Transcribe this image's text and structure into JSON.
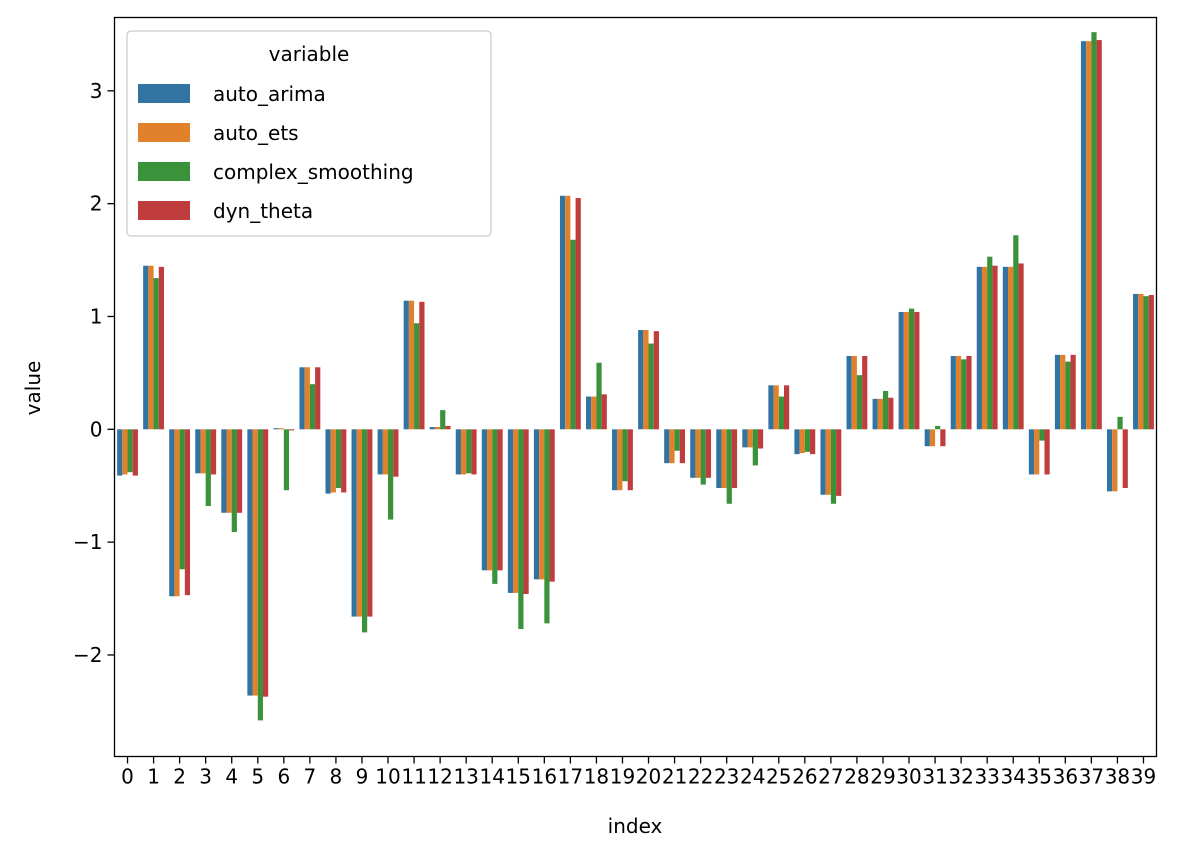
{
  "chart_data": {
    "type": "bar",
    "title": "",
    "xlabel": "index",
    "ylabel": "value",
    "ylim": [
      -2.9,
      3.65
    ],
    "yticks": [
      -2,
      -1,
      0,
      1,
      2,
      3
    ],
    "ytick_labels": [
      "−2",
      "−1",
      "0",
      "1",
      "2",
      "3"
    ],
    "legend": {
      "title": "variable",
      "placement": "upper-left"
    },
    "grid": false,
    "categories": [
      "0",
      "1",
      "2",
      "3",
      "4",
      "5",
      "6",
      "7",
      "8",
      "9",
      "10",
      "11",
      "12",
      "13",
      "14",
      "15",
      "16",
      "17",
      "18",
      "19",
      "20",
      "21",
      "22",
      "23",
      "24",
      "25",
      "26",
      "27",
      "28",
      "29",
      "30",
      "31",
      "32",
      "33",
      "34",
      "35",
      "36",
      "37",
      "38",
      "39"
    ],
    "series": [
      {
        "name": "auto_arima",
        "color": "#3274a1",
        "values": [
          -0.41,
          1.45,
          -1.48,
          -0.39,
          -0.74,
          -2.36,
          0.01,
          0.55,
          -0.57,
          -1.66,
          -0.4,
          1.14,
          0.02,
          -0.4,
          -1.25,
          -1.45,
          -1.33,
          2.07,
          0.29,
          -0.54,
          0.88,
          -0.3,
          -0.43,
          -0.52,
          -0.16,
          0.39,
          -0.22,
          -0.58,
          0.65,
          0.27,
          1.04,
          -0.15,
          0.65,
          1.44,
          1.44,
          -0.4,
          0.66,
          3.44,
          -0.55,
          1.2
        ]
      },
      {
        "name": "auto_ets",
        "color": "#e1812c",
        "values": [
          -0.4,
          1.45,
          -1.48,
          -0.39,
          -0.74,
          -2.36,
          0.01,
          0.55,
          -0.56,
          -1.66,
          -0.4,
          1.14,
          0.02,
          -0.4,
          -1.25,
          -1.45,
          -1.33,
          2.07,
          0.29,
          -0.54,
          0.88,
          -0.3,
          -0.43,
          -0.52,
          -0.16,
          0.39,
          -0.21,
          -0.58,
          0.65,
          0.27,
          1.04,
          -0.15,
          0.65,
          1.44,
          1.44,
          -0.4,
          0.66,
          3.44,
          -0.55,
          1.2
        ]
      },
      {
        "name": "complex_smoothing",
        "color": "#3a923a",
        "values": [
          -0.38,
          1.34,
          -1.24,
          -0.68,
          -0.91,
          -2.58,
          -0.54,
          0.4,
          -0.52,
          -1.8,
          -0.8,
          0.94,
          0.17,
          -0.39,
          -1.37,
          -1.77,
          -1.72,
          1.68,
          0.59,
          -0.46,
          0.76,
          -0.19,
          -0.49,
          -0.66,
          -0.32,
          0.29,
          -0.2,
          -0.66,
          0.48,
          0.34,
          1.07,
          0.03,
          0.62,
          1.53,
          1.72,
          -0.1,
          0.6,
          3.52,
          0.11,
          1.18
        ]
      },
      {
        "name": "dyn_theta",
        "color": "#c03d3e",
        "values": [
          -0.41,
          1.44,
          -1.47,
          -0.4,
          -0.74,
          -2.37,
          -0.01,
          0.55,
          -0.56,
          -1.66,
          -0.42,
          1.13,
          0.03,
          -0.4,
          -1.25,
          -1.46,
          -1.35,
          2.05,
          0.31,
          -0.54,
          0.87,
          -0.3,
          -0.43,
          -0.52,
          -0.17,
          0.39,
          -0.22,
          -0.59,
          0.65,
          0.28,
          1.04,
          -0.15,
          0.65,
          1.45,
          1.47,
          -0.4,
          0.66,
          3.45,
          -0.52,
          1.19
        ]
      }
    ]
  }
}
